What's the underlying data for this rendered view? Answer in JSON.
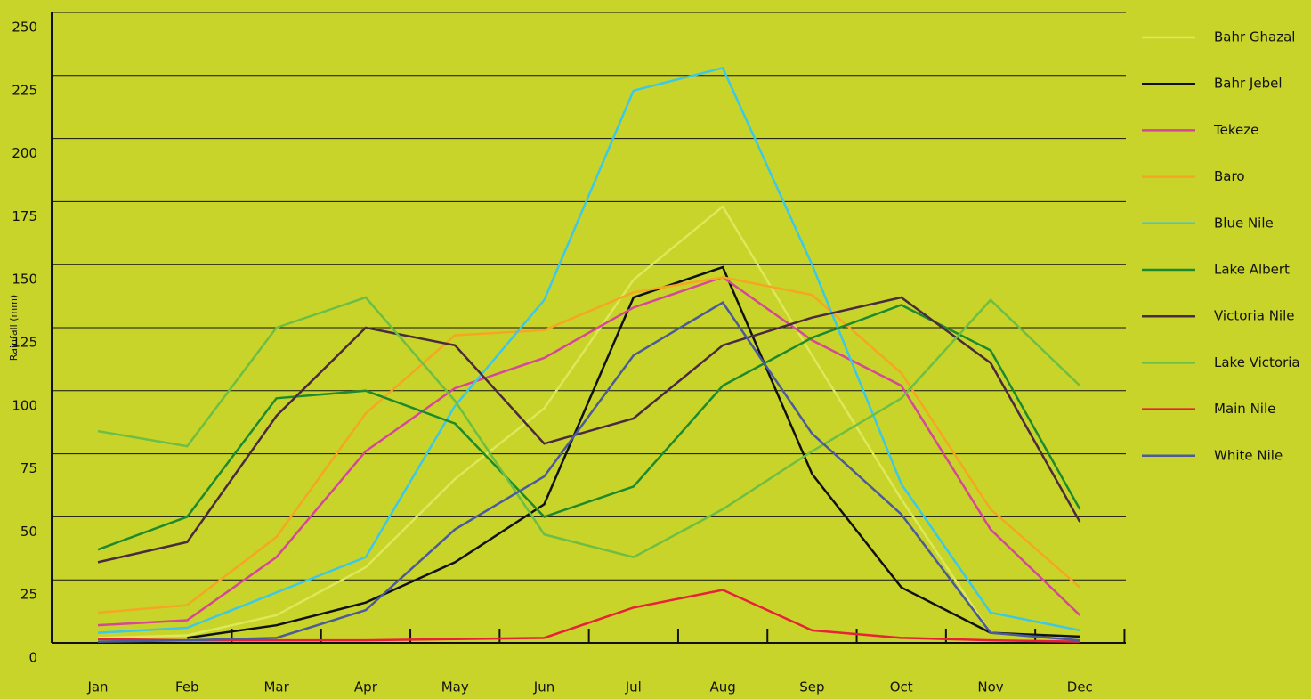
{
  "chart_data": {
    "type": "line",
    "y_label": "Rainfall (mm)",
    "categories": [
      "Jan",
      "Feb",
      "Mar",
      "Apr",
      "May",
      "Jun",
      "Jul",
      "Aug",
      "Sep",
      "Oct",
      "Nov",
      "Dec"
    ],
    "ylim": [
      0,
      250
    ],
    "yticks": [
      0,
      25,
      50,
      75,
      100,
      125,
      150,
      175,
      200,
      225,
      250
    ],
    "grid": true,
    "legend": "right",
    "series": [
      {
        "name": "Bahr Ghazal",
        "color": "#dde85a",
        "values": [
          2,
          3,
          11,
          30,
          65,
          93,
          144,
          173,
          114,
          57,
          4,
          2
        ]
      },
      {
        "name": "Bahr Jebel",
        "color": "#111111",
        "values": [
          null,
          2,
          7,
          16,
          32,
          55,
          137,
          149,
          67,
          22,
          4,
          2.5
        ]
      },
      {
        "name": "Tekeze",
        "color": "#d4479a",
        "values": [
          7,
          9,
          34,
          76,
          101,
          113,
          133,
          145,
          120,
          102,
          45,
          11
        ]
      },
      {
        "name": "Baro",
        "color": "#f5a623",
        "values": [
          12,
          15,
          42,
          91,
          122,
          124,
          139,
          145,
          138,
          107,
          53,
          22
        ]
      },
      {
        "name": "Blue Nile",
        "color": "#3cc8e6",
        "values": [
          4,
          6,
          20,
          34,
          94,
          136,
          219,
          228,
          150,
          63,
          12,
          5
        ]
      },
      {
        "name": "Lake Albert",
        "color": "#1e8a2e",
        "values": [
          37,
          50,
          97,
          100,
          87,
          50,
          62,
          102,
          121,
          134,
          116,
          53
        ]
      },
      {
        "name": "Victoria Nile",
        "color": "#4a2a3e",
        "values": [
          32,
          40,
          90,
          125,
          118,
          79,
          89,
          118,
          129,
          137,
          111,
          48
        ]
      },
      {
        "name": "Lake Victoria",
        "color": "#6cbe45",
        "values": [
          84,
          78,
          125,
          137,
          96,
          43,
          34,
          53,
          76,
          97,
          136,
          102
        ]
      },
      {
        "name": "Main Nile",
        "color": "#e8213a",
        "values": [
          1.5,
          1,
          1,
          1,
          1.5,
          2,
          14,
          21,
          5,
          2,
          1,
          0.5
        ]
      },
      {
        "name": "White Nile",
        "color": "#4a5a9a",
        "values": [
          0.5,
          1,
          2,
          13,
          45,
          66,
          114,
          135,
          83,
          51,
          4,
          1
        ]
      }
    ]
  }
}
